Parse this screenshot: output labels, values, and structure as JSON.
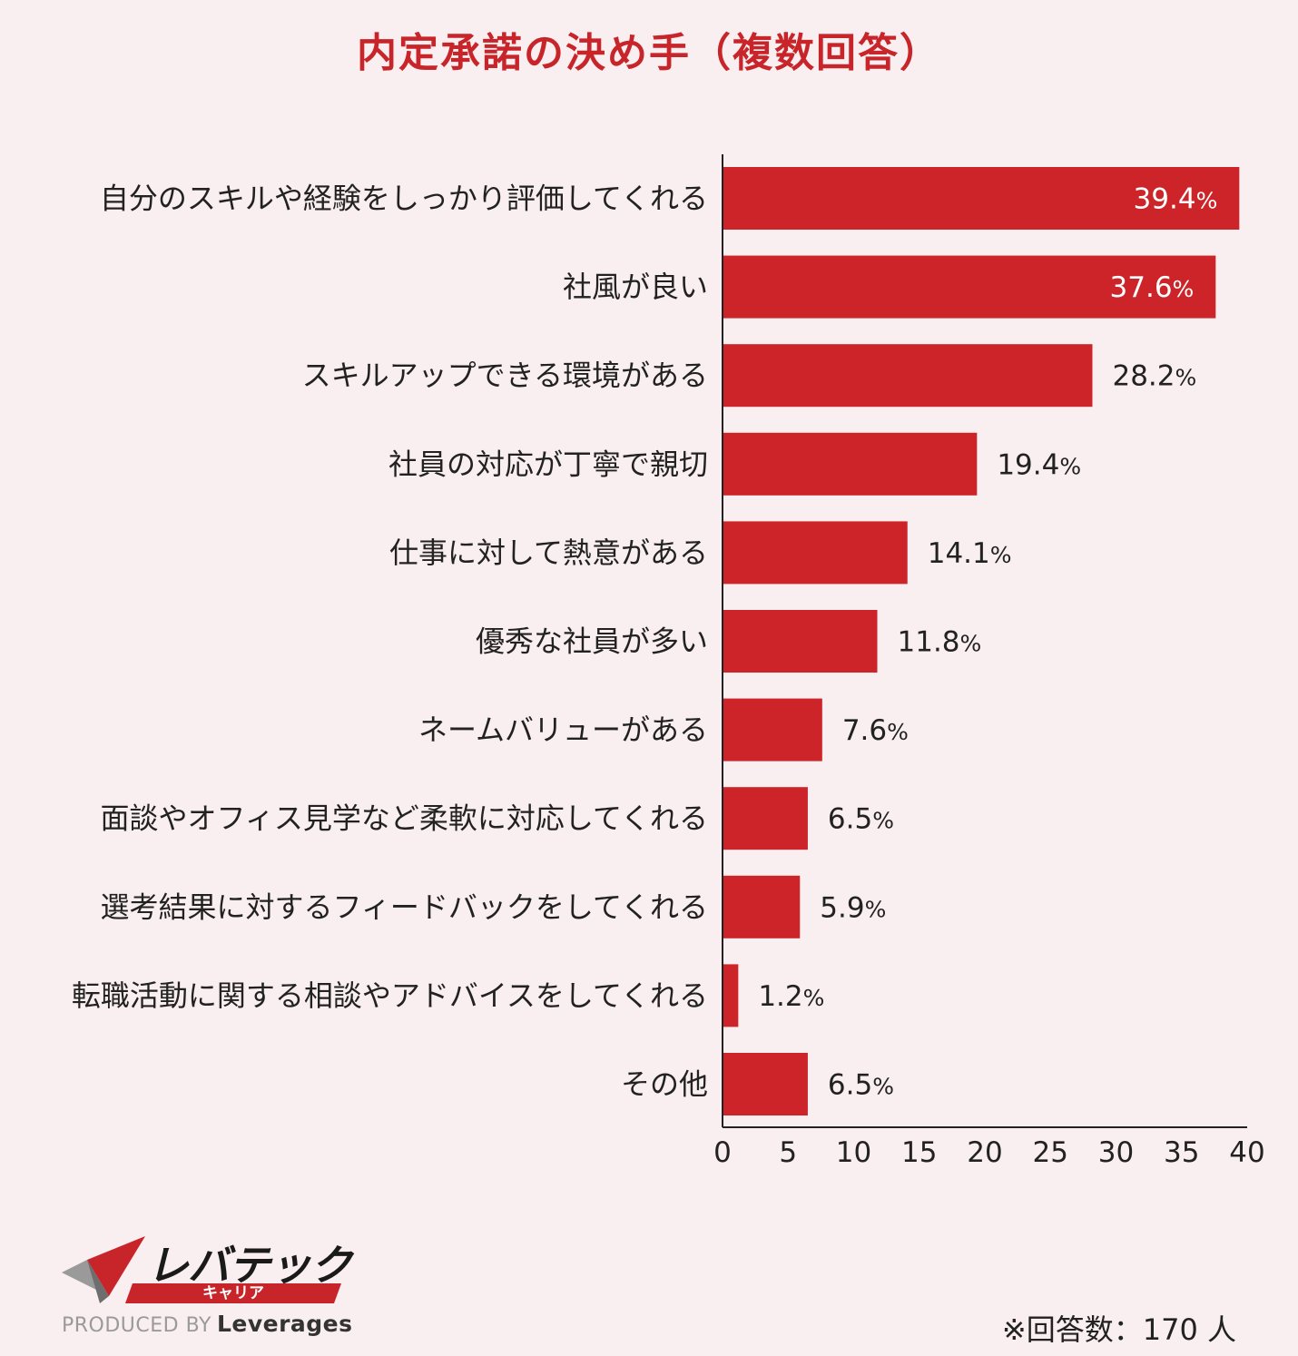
{
  "chart_data": {
    "type": "bar",
    "orientation": "horizontal",
    "title": "内定承諾の決め手（複数回答）",
    "categories": [
      "自分のスキルや経験をしっかり評価してくれる",
      "社風が良い",
      "スキルアップできる環境がある",
      "社員の対応が丁寧で親切",
      "仕事に対して熱意がある",
      "優秀な社員が多い",
      "ネームバリューがある",
      "面談やオフィス見学など柔軟に対応してくれる",
      "選考結果に対するフィードバックをしてくれる",
      "転職活動に関する相談やアドバイスをしてくれる",
      "その他"
    ],
    "values": [
      39.4,
      37.6,
      28.2,
      19.4,
      14.1,
      11.8,
      7.6,
      6.5,
      5.9,
      1.2,
      6.5
    ],
    "value_labels": [
      "39.4",
      "37.6",
      "28.2",
      "19.4",
      "14.1",
      "11.8",
      "7.6",
      "6.5",
      "5.9",
      "1.2",
      "6.5"
    ],
    "value_suffix": "%",
    "xlim": [
      0,
      40
    ],
    "xticks": [
      "0",
      "5",
      "10",
      "15",
      "20",
      "25",
      "30",
      "35",
      "40"
    ],
    "grid": false,
    "bar_color": "#cc2428"
  },
  "footer": {
    "note": "※回答数：170 人",
    "logo": {
      "main": "レバテック",
      "sub": "キャリア",
      "produced_by": "PRODUCED BY",
      "brand": "Leverages"
    }
  }
}
